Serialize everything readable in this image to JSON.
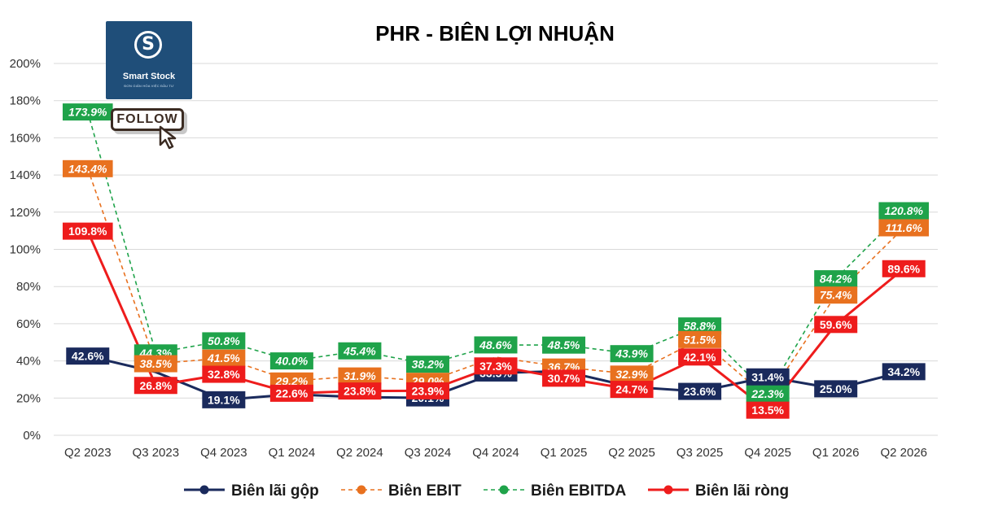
{
  "logo": {
    "name": "Smart Stock",
    "tagline": "ĐƠN GIẢN HÓA VIỆC ĐẦU TƯ"
  },
  "follow_label": "FOLLOW",
  "chart_data": {
    "type": "line",
    "title": "PHR - BIÊN LỢI NHUẬN",
    "categories": [
      "Q2 2023",
      "Q3 2023",
      "Q4 2023",
      "Q1 2024",
      "Q2 2024",
      "Q3 2024",
      "Q4 2024",
      "Q1 2025",
      "Q2 2025",
      "Q3 2025",
      "Q4 2025",
      "Q1 2026",
      "Q2 2026"
    ],
    "ylim": [
      0,
      200
    ],
    "yticks": [
      "0%",
      "20%",
      "40%",
      "60%",
      "80%",
      "100%",
      "120%",
      "140%",
      "160%",
      "180%",
      "200%"
    ],
    "grid": true,
    "legend_position": "bottom",
    "series": [
      {
        "name": "Biên lãi gộp",
        "color": "#1a2a5c",
        "dashed": false,
        "values": [
          42.6,
          34.0,
          19.1,
          22.0,
          20.5,
          20.1,
          33.5,
          34.5,
          26.0,
          23.6,
          31.4,
          25.0,
          34.2
        ],
        "labels": [
          "42.6%",
          "",
          "19.1%",
          "",
          "",
          "20.1%",
          "33.5%",
          "",
          "",
          "23.6%",
          "31.4%",
          "25.0%",
          "34.2%"
        ]
      },
      {
        "name": "Biên EBIT",
        "color": "#e8711f",
        "dashed": true,
        "values": [
          143.4,
          38.5,
          41.5,
          29.2,
          31.9,
          29.0,
          42.0,
          36.7,
          32.9,
          51.5,
          20.0,
          75.4,
          111.6
        ],
        "labels": [
          "143.4%",
          "38.5%",
          "41.5%",
          "29.2%",
          "31.9%",
          "29.0%",
          "",
          "36.7%",
          "32.9%",
          "51.5%",
          "",
          "75.4%",
          "111.6%"
        ]
      },
      {
        "name": "Biên EBITDA",
        "color": "#1fa34a",
        "dashed": true,
        "values": [
          173.9,
          44.3,
          50.8,
          40.0,
          45.4,
          38.2,
          48.6,
          48.5,
          43.9,
          58.8,
          22.3,
          84.2,
          120.8
        ],
        "labels": [
          "173.9%",
          "44.3%",
          "50.8%",
          "40.0%",
          "45.4%",
          "38.2%",
          "48.6%",
          "48.5%",
          "43.9%",
          "58.8%",
          "22.3%",
          "84.2%",
          "120.8%"
        ]
      },
      {
        "name": "Biên lãi ròng",
        "color": "#ee1c1c",
        "dashed": false,
        "values": [
          109.8,
          26.8,
          32.8,
          22.6,
          23.8,
          23.9,
          37.3,
          30.7,
          24.7,
          42.1,
          13.5,
          59.6,
          89.6
        ],
        "labels": [
          "109.8%",
          "26.8%",
          "32.8%",
          "22.6%",
          "23.8%",
          "23.9%",
          "37.3%",
          "30.7%",
          "24.7%",
          "42.1%",
          "13.5%",
          "59.6%",
          "89.6%"
        ]
      }
    ]
  }
}
